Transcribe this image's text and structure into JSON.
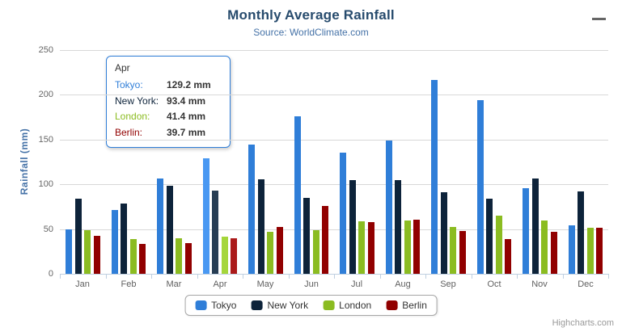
{
  "header": {
    "title": "Monthly Average Rainfall",
    "subtitle": "Source: WorldClimate.com",
    "title_color": "#274b6d",
    "subtitle_color": "#4572a7"
  },
  "context_menu_icon": "hamburger-menu-icon",
  "chart_data": {
    "type": "bar",
    "title": "Monthly Average Rainfall",
    "subtitle": "Source: WorldClimate.com",
    "xlabel": "",
    "ylabel": "Rainfall (mm)",
    "ylim": [
      0,
      250
    ],
    "ytick_step": 50,
    "yticks": [
      0,
      50,
      100,
      150,
      200,
      250
    ],
    "grid": true,
    "legend_position": "bottom",
    "categories": [
      "Jan",
      "Feb",
      "Mar",
      "Apr",
      "May",
      "Jun",
      "Jul",
      "Aug",
      "Sep",
      "Oct",
      "Nov",
      "Dec"
    ],
    "hovered_category_index": 3,
    "series": [
      {
        "name": "Tokyo",
        "color": "#2f7ed8",
        "hover_color": "#4998f2",
        "values": [
          49.9,
          71.5,
          106.4,
          129.2,
          144.0,
          176.0,
          135.6,
          148.5,
          216.4,
          194.1,
          95.6,
          54.4
        ]
      },
      {
        "name": "New York",
        "color": "#0d233a",
        "hover_color": "#273d54",
        "values": [
          83.6,
          78.8,
          98.5,
          93.4,
          106.0,
          84.5,
          105.0,
          104.3,
          91.2,
          83.5,
          106.6,
          92.3
        ]
      },
      {
        "name": "London",
        "color": "#8bbc21",
        "hover_color": "#a5d63b",
        "values": [
          48.9,
          38.8,
          39.3,
          41.4,
          47.0,
          48.3,
          59.0,
          59.6,
          52.4,
          65.2,
          59.3,
          51.2
        ]
      },
      {
        "name": "Berlin",
        "color": "#910000",
        "hover_color": "#ab1a1a",
        "values": [
          42.4,
          33.2,
          34.5,
          39.7,
          52.6,
          75.5,
          57.4,
          60.4,
          47.6,
          39.1,
          46.8,
          51.1
        ]
      }
    ]
  },
  "tooltip": {
    "header": "Apr",
    "rows": [
      {
        "name": "Tokyo:",
        "value": "129.2 mm",
        "color": "#2f7ed8"
      },
      {
        "name": "New York:",
        "value": "93.4 mm",
        "color": "#0d233a"
      },
      {
        "name": "London:",
        "value": "41.4 mm",
        "color": "#8bbc21"
      },
      {
        "name": "Berlin:",
        "value": "39.7 mm",
        "color": "#910000"
      }
    ]
  },
  "credits": {
    "label": "Highcharts.com"
  }
}
